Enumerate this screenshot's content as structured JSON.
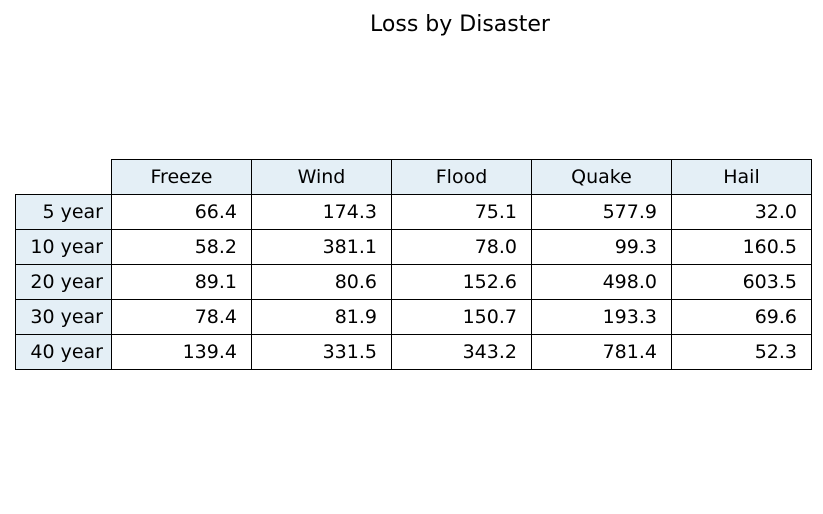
{
  "chart_data": {
    "type": "table",
    "title": "Loss by Disaster",
    "columns": [
      "Freeze",
      "Wind",
      "Flood",
      "Quake",
      "Hail"
    ],
    "rows": [
      {
        "label": "5 year",
        "values": [
          "66.4",
          "174.3",
          "75.1",
          "577.9",
          "32.0"
        ]
      },
      {
        "label": "10 year",
        "values": [
          "58.2",
          "381.1",
          "78.0",
          "99.3",
          "160.5"
        ]
      },
      {
        "label": "20 year",
        "values": [
          "89.1",
          "80.6",
          "152.6",
          "498.0",
          "603.5"
        ]
      },
      {
        "label": "30 year",
        "values": [
          "78.4",
          "81.9",
          "150.7",
          "193.3",
          "69.6"
        ]
      },
      {
        "label": "40 year",
        "values": [
          "139.4",
          "331.5",
          "343.2",
          "781.4",
          "52.3"
        ]
      }
    ],
    "header_fill_color": "#e4eff6",
    "cell_fill_color": "#ffffff",
    "border_color": "#000000"
  }
}
